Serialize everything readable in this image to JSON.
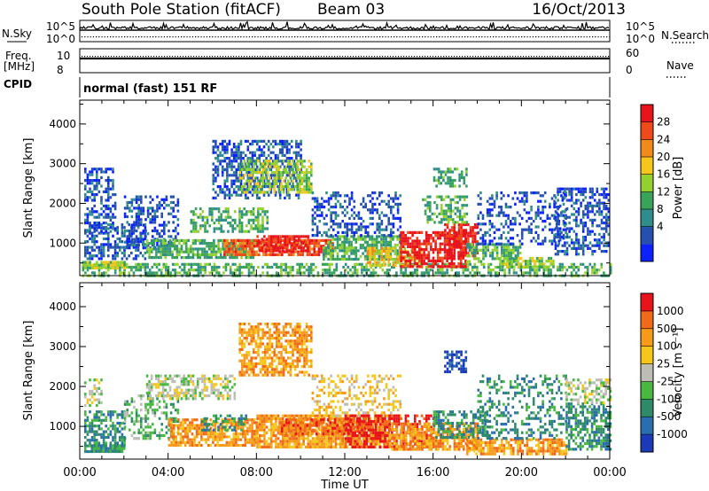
{
  "header": {
    "station": "South Pole Station (fitACF)",
    "beam": "Beam 03",
    "date": "16/Oct/2013"
  },
  "side_labels": {
    "nsky": "N.Sky",
    "freq_line1": "Freq.",
    "freq_line2": "[MHz]",
    "cpid": "CPID",
    "nsearch": "N.Search",
    "nave": "Nave"
  },
  "nsky_panel": {
    "left_ticks": [
      "10^5",
      "10^0"
    ],
    "right_ticks": [
      "10^5",
      "10^0"
    ]
  },
  "freq_panel": {
    "left_ticks": [
      "10",
      "8"
    ],
    "right_ticks": [
      "60",
      "0"
    ]
  },
  "cpid_text": "normal (fast) 151 RF",
  "time_axis": {
    "ticks": [
      "00:00",
      "04:00",
      "08:00",
      "12:00",
      "16:00",
      "20:00",
      "00:00"
    ],
    "label": "Time UT"
  },
  "chart_data": [
    {
      "type": "heatmap",
      "name": "power",
      "ylabel": "Slant Range [km]",
      "yticks": [
        1000,
        2000,
        3000,
        4000
      ],
      "ylim": [
        180,
        4600
      ],
      "xlim_hours": [
        0,
        24
      ],
      "colorbar_label": "Power [dB]",
      "colorbar_ticks": [
        "28",
        "24",
        "20",
        "16",
        "12",
        "8",
        "4"
      ],
      "colorbar_colors": [
        "#0b22ff",
        "#2650b0",
        "#2f8e8c",
        "#3aa35a",
        "#93d130",
        "#f5c61b",
        "#f08a1c",
        "#ee4a1a",
        "#e8141c"
      ],
      "bands": [
        {
          "t0": 0.1,
          "t1": 24,
          "r0": 200,
          "r1": 500,
          "v": 3,
          "d": 0.55
        },
        {
          "t0": 0.1,
          "t1": 2.0,
          "r0": 350,
          "r1": 550,
          "v": 4,
          "d": 0.8
        },
        {
          "t0": 0.2,
          "t1": 3.0,
          "r0": 600,
          "r1": 1500,
          "v": 1,
          "d": 0.5
        },
        {
          "t0": 0.2,
          "t1": 1.6,
          "r0": 1300,
          "r1": 2900,
          "v": 1,
          "d": 0.45
        },
        {
          "t0": 2.0,
          "t1": 4.5,
          "r0": 900,
          "r1": 2200,
          "v": 1,
          "d": 0.4
        },
        {
          "t0": 3.0,
          "t1": 8.0,
          "r0": 600,
          "r1": 1100,
          "v": 3,
          "d": 0.75
        },
        {
          "t0": 5.0,
          "t1": 8.5,
          "r0": 1300,
          "r1": 1900,
          "v": 3,
          "d": 0.55
        },
        {
          "t0": 6.0,
          "t1": 10.0,
          "r0": 2100,
          "r1": 3600,
          "v": 1,
          "d": 0.55
        },
        {
          "t0": 7.2,
          "t1": 10.5,
          "r0": 2300,
          "r1": 3100,
          "v": 4,
          "d": 0.6
        },
        {
          "t0": 6.5,
          "t1": 11.5,
          "r0": 700,
          "r1": 1100,
          "v": 7,
          "d": 0.8
        },
        {
          "t0": 8.0,
          "t1": 10.3,
          "r0": 800,
          "r1": 1200,
          "v": 8,
          "d": 0.7
        },
        {
          "t0": 11.0,
          "t1": 14.5,
          "r0": 600,
          "r1": 1200,
          "v": 3,
          "d": 0.75
        },
        {
          "t0": 10.5,
          "t1": 14.5,
          "r0": 1200,
          "r1": 2300,
          "v": 1,
          "d": 0.4
        },
        {
          "t0": 13.0,
          "t1": 15.5,
          "r0": 400,
          "r1": 900,
          "v": 5,
          "d": 0.65
        },
        {
          "t0": 14.5,
          "t1": 17.5,
          "r0": 400,
          "r1": 1300,
          "v": 8,
          "d": 0.7
        },
        {
          "t0": 16.5,
          "t1": 18.0,
          "r0": 600,
          "r1": 1500,
          "v": 8,
          "d": 0.65
        },
        {
          "t0": 15.5,
          "t1": 17.5,
          "r0": 1500,
          "r1": 2200,
          "v": 3,
          "d": 0.5
        },
        {
          "t0": 16.0,
          "t1": 17.5,
          "r0": 2400,
          "r1": 2900,
          "v": 3,
          "d": 0.55
        },
        {
          "t0": 17.5,
          "t1": 20.0,
          "r0": 500,
          "r1": 1000,
          "v": 3,
          "d": 0.7
        },
        {
          "t0": 18.0,
          "t1": 22.0,
          "r0": 1000,
          "r1": 2300,
          "v": 1,
          "d": 0.35
        },
        {
          "t0": 19.0,
          "t1": 21.5,
          "r0": 400,
          "r1": 650,
          "v": 4,
          "d": 0.75
        },
        {
          "t0": 21.5,
          "t1": 24,
          "r0": 700,
          "r1": 2400,
          "v": 1,
          "d": 0.45
        }
      ]
    },
    {
      "type": "heatmap",
      "name": "velocity",
      "ylabel": "Slant Range [km]",
      "yticks": [
        1000,
        2000,
        3000,
        4000
      ],
      "ylim": [
        180,
        4600
      ],
      "xlim_hours": [
        0,
        24
      ],
      "colorbar_label": "Velocity [m s⁻¹]",
      "colorbar_ticks": [
        "1000",
        "500",
        "100",
        "25",
        "-25",
        "-100",
        "-500",
        "-1000"
      ],
      "colorbar_colors": [
        "#1a3ab8",
        "#2a6eb0",
        "#2f8a6a",
        "#48b840",
        "#bdbdb4",
        "#f5c61b",
        "#f59a1a",
        "#f06a1a",
        "#e8141c"
      ],
      "bands": [
        {
          "t0": 0.2,
          "t1": 2.0,
          "r0": 400,
          "r1": 1400,
          "v": 2,
          "d": 0.6
        },
        {
          "t0": 0.2,
          "t1": 1.0,
          "r0": 1500,
          "r1": 2200,
          "v": 4,
          "d": 0.5
        },
        {
          "t0": 0.5,
          "t1": 2.0,
          "r0": 350,
          "r1": 550,
          "v": 2,
          "d": 0.8
        },
        {
          "t0": 2.0,
          "t1": 4.5,
          "r0": 700,
          "r1": 1800,
          "v": 3,
          "d": 0.35
        },
        {
          "t0": 3.0,
          "t1": 7.0,
          "r0": 1700,
          "r1": 2300,
          "v": 4,
          "d": 0.55
        },
        {
          "t0": 4.0,
          "t1": 8.0,
          "r0": 500,
          "r1": 1200,
          "v": 6,
          "d": 0.75
        },
        {
          "t0": 5.5,
          "t1": 7.5,
          "r0": 900,
          "r1": 1300,
          "v": 2,
          "d": 0.5
        },
        {
          "t0": 7.2,
          "t1": 10.5,
          "r0": 2300,
          "r1": 3600,
          "v": 6,
          "d": 0.65
        },
        {
          "t0": 8.0,
          "t1": 14.0,
          "r0": 500,
          "r1": 1300,
          "v": 6,
          "d": 0.85
        },
        {
          "t0": 9.0,
          "t1": 13.0,
          "r0": 800,
          "r1": 1200,
          "v": 7,
          "d": 0.7
        },
        {
          "t0": 10.5,
          "t1": 14.5,
          "r0": 1300,
          "r1": 2300,
          "v": 5,
          "d": 0.35
        },
        {
          "t0": 12.0,
          "t1": 16.0,
          "r0": 500,
          "r1": 1300,
          "v": 8,
          "d": 0.55
        },
        {
          "t0": 14.0,
          "t1": 18.0,
          "r0": 400,
          "r1": 1100,
          "v": 6,
          "d": 0.75
        },
        {
          "t0": 16.0,
          "t1": 18.5,
          "r0": 700,
          "r1": 1400,
          "v": 2,
          "d": 0.55
        },
        {
          "t0": 16.5,
          "t1": 17.5,
          "r0": 2400,
          "r1": 2900,
          "v": 0,
          "d": 0.55
        },
        {
          "t0": 17.5,
          "t1": 22.0,
          "r0": 300,
          "r1": 700,
          "v": 6,
          "d": 0.75
        },
        {
          "t0": 18.0,
          "t1": 22.0,
          "r0": 700,
          "r1": 2300,
          "v": 2,
          "d": 0.35
        },
        {
          "t0": 22.0,
          "t1": 24,
          "r0": 400,
          "r1": 1600,
          "v": 2,
          "d": 0.6
        },
        {
          "t0": 22.0,
          "t1": 24,
          "r0": 1600,
          "r1": 2200,
          "v": 4,
          "d": 0.45
        }
      ]
    }
  ]
}
